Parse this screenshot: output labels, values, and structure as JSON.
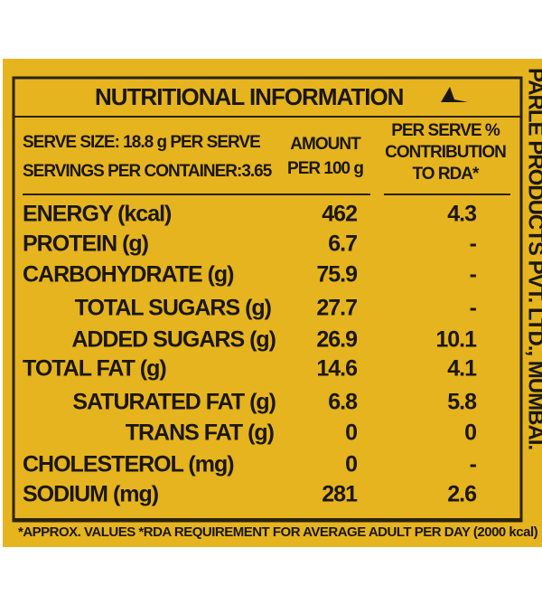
{
  "label": {
    "title": "NUTRITIONAL INFORMATION",
    "serve_size": "SERVE SIZE: 18.8 g PER SERVE",
    "servings": "SERVINGS PER CONTAINER:3.65",
    "amount_header": [
      "AMOUNT",
      "PER 100 g"
    ],
    "rda_header": [
      "PER SERVE %",
      "CONTRIBUTION",
      "TO RDA*"
    ],
    "rows": [
      [
        "ENERGY (kcal)",
        "462",
        "4.3"
      ],
      [
        "PROTEIN (g)",
        "6.7",
        "-"
      ],
      [
        "CARBOHYDRATE (g)",
        "75.9",
        "-"
      ],
      [
        "TOTAL SUGARS (g)",
        "27.7",
        "-"
      ],
      [
        "ADDED SUGARS (g)",
        "26.9",
        "10.1"
      ],
      [
        "TOTAL FAT (g)",
        "14.6",
        "4.1"
      ],
      [
        "SATURATED FAT (g)",
        "6.8",
        "5.8"
      ],
      [
        "TRANS FAT (g)",
        "0",
        "0"
      ],
      [
        "CHOLESTEROL (mg)",
        "0",
        "-"
      ],
      [
        "SODIUM (mg)",
        "281",
        "2.6"
      ]
    ],
    "footnote": "*APPROX. VALUES *RDA REQUIREMENT FOR AVERAGE ADULT PER DAY (2000 kcal)",
    "manufacturer": "PARLE PRODUCTS PVT. LTD., MUMBAI."
  }
}
